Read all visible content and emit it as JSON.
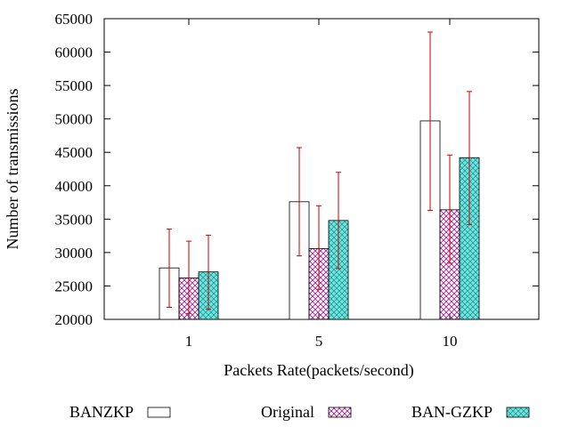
{
  "chart_data": {
    "type": "bar",
    "title": "",
    "xlabel": "Packets Rate(packets/second)",
    "ylabel": "Number of transmissions",
    "ylim": [
      20000,
      65000
    ],
    "yticks": [
      20000,
      25000,
      30000,
      35000,
      40000,
      45000,
      50000,
      55000,
      60000,
      65000
    ],
    "categories": [
      "1",
      "5",
      "10"
    ],
    "grid": false,
    "legend_position": "bottom",
    "series": [
      {
        "name": "BANZKP",
        "values": [
          27700,
          37600,
          49700
        ],
        "error_low": [
          21800,
          29500,
          36300
        ],
        "error_high": [
          33500,
          45700,
          63000
        ],
        "fill": "none",
        "color": "#000000"
      },
      {
        "name": "Original",
        "values": [
          26200,
          30600,
          36400
        ],
        "error_low": [
          20900,
          24500,
          28400
        ],
        "error_high": [
          31700,
          37000,
          44600
        ],
        "fill": "crosshatch",
        "color": "#a0208f"
      },
      {
        "name": "BAN-GZKP",
        "values": [
          27100,
          34800,
          44200
        ],
        "error_low": [
          21500,
          27600,
          34200
        ],
        "error_high": [
          32600,
          42000,
          54100
        ],
        "fill": "crosshatch",
        "color": "#2bb5b0"
      }
    ],
    "error_bar_color": "#cc0000"
  }
}
